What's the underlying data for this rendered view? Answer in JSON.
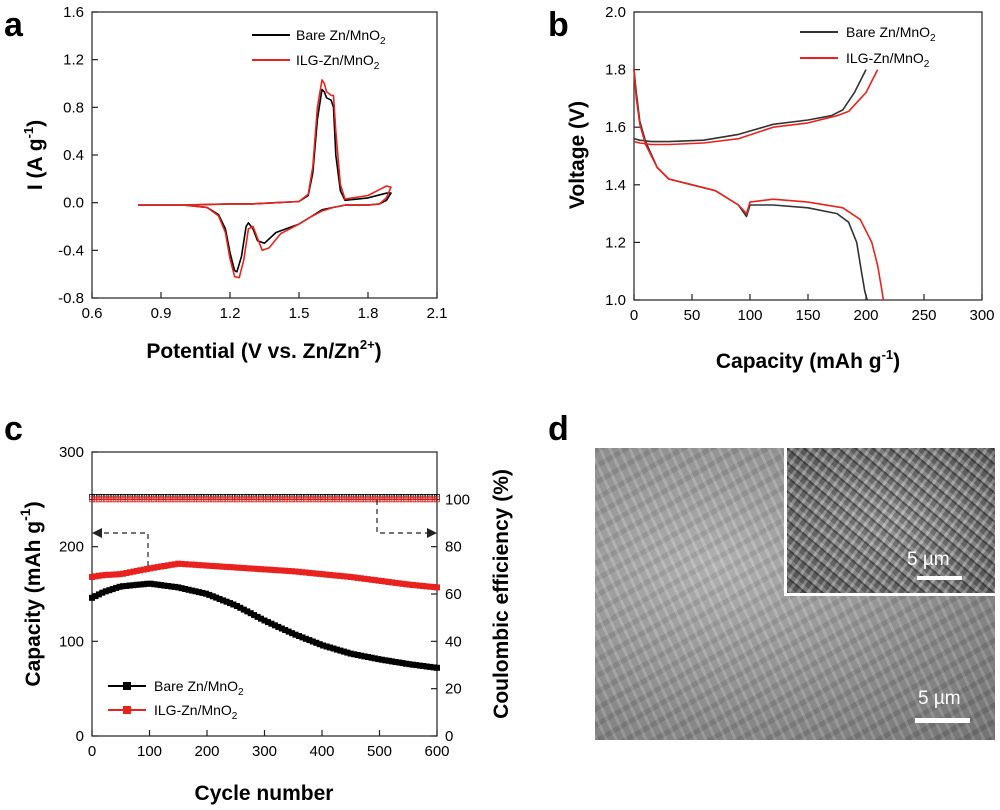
{
  "panel_letters": {
    "a": "a",
    "b": "b",
    "c": "c",
    "d": "d"
  },
  "chart_data": [
    {
      "panel": "a",
      "type": "line",
      "title": "",
      "xlabel": "Potential (V vs. Zn/Zn2+)",
      "xlabel_main": "Potential (V vs. Zn/Zn",
      "xlabel_sup": "2+",
      "xlabel_end": ")",
      "ylabel_main": "I (A g",
      "ylabel_sup": "-1",
      "ylabel_end": ")",
      "xlim": [
        0.6,
        2.1
      ],
      "ylim": [
        -0.8,
        1.6
      ],
      "xticks": [
        "0.6",
        "0.9",
        "1.2",
        "1.5",
        "1.8",
        "2.1"
      ],
      "yticks": [
        "-0.8",
        "-0.4",
        "0.0",
        "0.4",
        "0.8",
        "1.2",
        "1.6"
      ],
      "legend_position": "top-right",
      "series": [
        {
          "name": "Bare Zn/MnO2",
          "label_main": "Bare Zn/MnO",
          "label_sub": "2",
          "color": "#000000",
          "x": [
            0.8,
            1.0,
            1.1,
            1.15,
            1.18,
            1.2,
            1.22,
            1.23,
            1.25,
            1.27,
            1.28,
            1.3,
            1.32,
            1.35,
            1.4,
            1.5,
            1.55,
            1.6,
            1.65,
            1.7,
            1.8,
            1.85,
            1.88,
            1.9,
            1.88,
            1.8,
            1.7,
            1.68,
            1.66,
            1.65,
            1.64,
            1.62,
            1.61,
            1.6,
            1.58,
            1.56,
            1.54,
            1.5,
            1.4,
            1.3,
            1.2,
            1.0,
            0.8
          ],
          "y": [
            -0.02,
            -0.02,
            -0.04,
            -0.1,
            -0.22,
            -0.42,
            -0.57,
            -0.58,
            -0.45,
            -0.2,
            -0.17,
            -0.22,
            -0.32,
            -0.34,
            -0.25,
            -0.18,
            -0.12,
            -0.06,
            -0.04,
            -0.02,
            -0.02,
            -0.01,
            0.02,
            0.08,
            0.08,
            0.04,
            0.02,
            0.1,
            0.4,
            0.8,
            0.86,
            0.88,
            0.93,
            0.95,
            0.7,
            0.25,
            0.06,
            0.01,
            0.0,
            -0.01,
            -0.01,
            -0.02,
            -0.02
          ]
        },
        {
          "name": "ILG-Zn/MnO2",
          "label_main": "ILG-Zn/MnO",
          "label_sub": "2",
          "color": "#e8231f",
          "x": [
            0.8,
            1.0,
            1.1,
            1.15,
            1.18,
            1.2,
            1.22,
            1.24,
            1.26,
            1.28,
            1.3,
            1.32,
            1.34,
            1.37,
            1.42,
            1.5,
            1.55,
            1.6,
            1.65,
            1.7,
            1.8,
            1.85,
            1.88,
            1.9,
            1.88,
            1.8,
            1.7,
            1.68,
            1.66,
            1.65,
            1.64,
            1.62,
            1.61,
            1.6,
            1.58,
            1.56,
            1.54,
            1.5,
            1.4,
            1.3,
            1.2,
            1.0,
            0.8
          ],
          "y": [
            -0.02,
            -0.02,
            -0.04,
            -0.11,
            -0.25,
            -0.47,
            -0.62,
            -0.63,
            -0.48,
            -0.22,
            -0.2,
            -0.3,
            -0.4,
            -0.38,
            -0.26,
            -0.18,
            -0.12,
            -0.07,
            -0.04,
            -0.02,
            -0.02,
            -0.01,
            0.04,
            0.13,
            0.14,
            0.06,
            0.03,
            0.15,
            0.6,
            0.9,
            0.9,
            0.93,
            1.0,
            1.03,
            0.8,
            0.3,
            0.07,
            0.01,
            0.0,
            -0.01,
            -0.01,
            -0.02,
            -0.02
          ]
        }
      ]
    },
    {
      "panel": "b",
      "type": "line",
      "title": "",
      "xlabel_main": "Capacity (mAh g",
      "xlabel_sup": "-1",
      "xlabel_end": ")",
      "ylabel": "Voltage (V)",
      "xlim": [
        0,
        300
      ],
      "ylim": [
        1.0,
        2.0
      ],
      "xticks": [
        "0",
        "50",
        "100",
        "150",
        "200",
        "250",
        "300"
      ],
      "yticks": [
        "1.0",
        "1.2",
        "1.4",
        "1.6",
        "1.8",
        "2.0"
      ],
      "legend_position": "top-right",
      "series": [
        {
          "name": "Bare Zn/MnO2 charge",
          "label_main": "Bare Zn/MnO",
          "label_sub": "2",
          "color": "#333333",
          "x": [
            0,
            5,
            15,
            30,
            60,
            90,
            120,
            150,
            170,
            180,
            190,
            200
          ],
          "y": [
            1.56,
            1.555,
            1.55,
            1.55,
            1.555,
            1.575,
            1.61,
            1.625,
            1.64,
            1.66,
            1.72,
            1.8
          ]
        },
        {
          "name": "Bare Zn/MnO2 discharge",
          "color": "#333333",
          "x": [
            0,
            2,
            5,
            10,
            20,
            30,
            50,
            70,
            90,
            97,
            100,
            120,
            150,
            175,
            185,
            192,
            196,
            199,
            201
          ],
          "y": [
            1.8,
            1.72,
            1.62,
            1.55,
            1.46,
            1.42,
            1.4,
            1.38,
            1.33,
            1.29,
            1.33,
            1.33,
            1.32,
            1.3,
            1.27,
            1.2,
            1.1,
            1.03,
            1.0
          ]
        },
        {
          "name": "ILG-Zn/MnO2 charge",
          "label_main": "ILG-Zn/MnO",
          "label_sub": "2",
          "color": "#e8231f",
          "x": [
            0,
            5,
            15,
            30,
            60,
            90,
            120,
            150,
            175,
            185,
            200,
            210
          ],
          "y": [
            1.55,
            1.545,
            1.54,
            1.54,
            1.545,
            1.56,
            1.6,
            1.615,
            1.64,
            1.655,
            1.72,
            1.8
          ]
        },
        {
          "name": "ILG-Zn/MnO2 discharge",
          "color": "#e8231f",
          "x": [
            0,
            2,
            5,
            10,
            20,
            30,
            50,
            70,
            90,
            97,
            100,
            120,
            150,
            180,
            195,
            205,
            210,
            213,
            215
          ],
          "y": [
            1.8,
            1.7,
            1.61,
            1.54,
            1.46,
            1.42,
            1.4,
            1.38,
            1.33,
            1.3,
            1.34,
            1.35,
            1.34,
            1.32,
            1.28,
            1.2,
            1.12,
            1.05,
            1.0
          ]
        }
      ]
    },
    {
      "panel": "c",
      "type": "scatter",
      "title": "",
      "xlabel": "Cycle number",
      "ylabel_main": "Capacity (mAh g",
      "ylabel_sup": "-1",
      "ylabel_end": ")",
      "y2label": "Coulombic efficiency (%)",
      "xlim": [
        0,
        600
      ],
      "ylim": [
        0,
        300
      ],
      "y2lim": [
        0,
        120
      ],
      "xticks": [
        "0",
        "100",
        "200",
        "300",
        "400",
        "500",
        "600"
      ],
      "yticks": [
        "0",
        "100",
        "200",
        "300"
      ],
      "y2ticks": [
        "0",
        "20",
        "40",
        "60",
        "80",
        "100"
      ],
      "legend_position": "bottom-left",
      "series": [
        {
          "name": "Bare Zn/MnO2",
          "label_main": "Bare Zn/MnO",
          "label_sub": "2",
          "color": "#000000",
          "axis": "left",
          "x": [
            0,
            20,
            50,
            100,
            150,
            200,
            250,
            300,
            350,
            400,
            450,
            500,
            550,
            600
          ],
          "y": [
            146,
            152,
            158,
            161,
            157,
            150,
            138,
            122,
            108,
            96,
            87,
            81,
            76,
            72
          ]
        },
        {
          "name": "ILG-Zn/MnO2",
          "label_main": "ILG-Zn/MnO",
          "label_sub": "2",
          "color": "#e8231f",
          "axis": "left",
          "x": [
            0,
            20,
            50,
            100,
            150,
            200,
            250,
            300,
            350,
            400,
            450,
            500,
            550,
            600
          ],
          "y": [
            168,
            170,
            171,
            177,
            182,
            180,
            178,
            176,
            174,
            171,
            168,
            164,
            160,
            157
          ]
        },
        {
          "name": "Bare Zn/MnO2 CE",
          "color": "#000000",
          "axis": "right",
          "x": [
            0,
            100,
            200,
            300,
            400,
            500,
            600
          ],
          "y": [
            101,
            101,
            101,
            101,
            101,
            101,
            101
          ]
        },
        {
          "name": "ILG-Zn/MnO2 CE",
          "color": "#e8231f",
          "axis": "right",
          "x": [
            0,
            100,
            200,
            300,
            400,
            500,
            600
          ],
          "y": [
            100,
            100,
            100,
            100,
            100,
            100,
            100
          ]
        }
      ]
    }
  ],
  "sem": {
    "main_scale_label": "5 µm",
    "inset_scale_label": "5 µm"
  }
}
